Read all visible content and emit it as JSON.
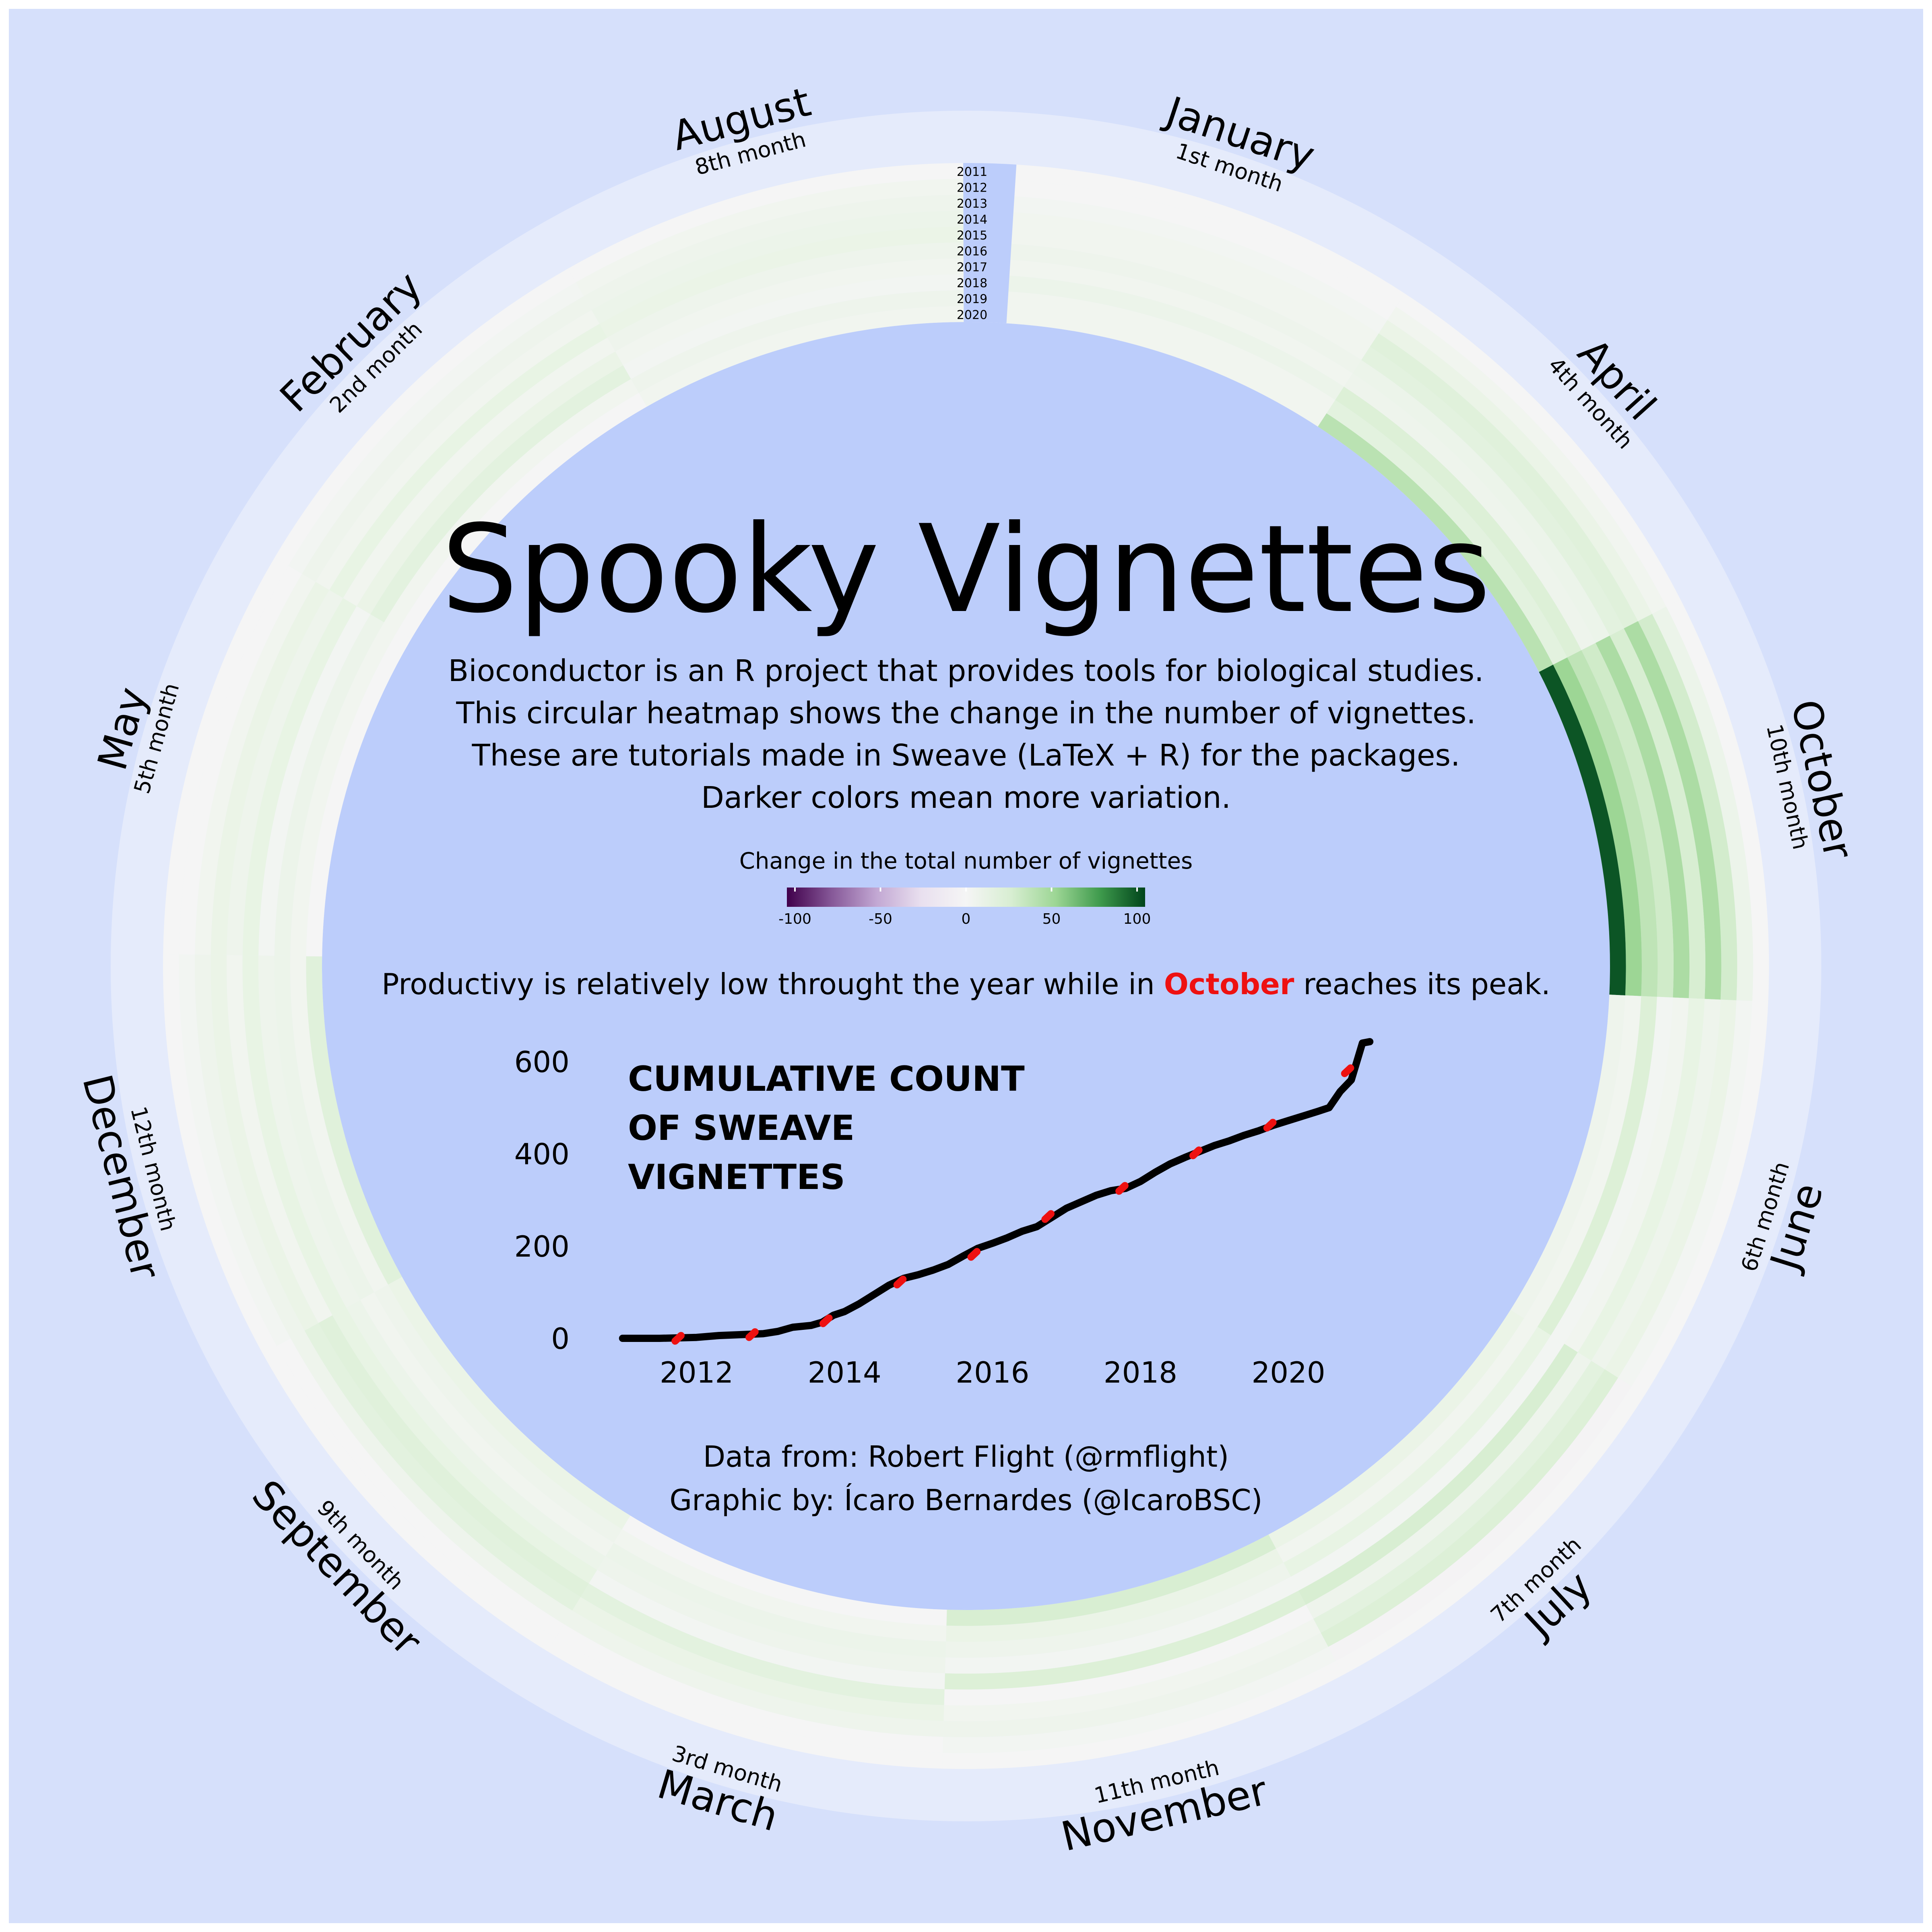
{
  "title": "Spooky Vignettes",
  "description": [
    "Bioconductor is an R project that provides tools for biological studies.",
    "This circular heatmap shows the change in the number of vignettes.",
    "These are tutorials made in Sweave (LaTeX + R) for the packages.",
    "Darker colors mean more variation."
  ],
  "legend": {
    "title": "Change in the total number of vignettes",
    "ticks": [
      "-100",
      "-50",
      "0",
      "50",
      "100"
    ],
    "range": [
      -100,
      100
    ]
  },
  "peak_note": {
    "before": "Productivy is relatively low throught the year while in ",
    "highlight": "October",
    "after": " reaches its peak."
  },
  "credits": {
    "data": "Data from: Robert Flight (@rmflight)",
    "graphic": "Graphic by: Ícaro Bernardes (@IcaroBSC)"
  },
  "colors": {
    "background": "#d6e0fb",
    "center": "#bccdfb",
    "highlight": "#ee1111",
    "line": "#000000",
    "year_label_bg": "#bccdfb"
  },
  "chart_data": [
    {
      "type": "heatmap",
      "layout": "circular",
      "months_order_clockwise": [
        "January",
        "April",
        "October",
        "June",
        "July",
        "November",
        "March",
        "September",
        "December",
        "May",
        "February",
        "August"
      ],
      "month_sublabels": {
        "January": "1st month",
        "February": "2nd month",
        "March": "3rd month",
        "April": "4th month",
        "May": "5th month",
        "June": "6th month",
        "July": "7th month",
        "August": "8th month",
        "September": "9th month",
        "October": "10th month",
        "November": "11th month",
        "December": "12th month"
      },
      "years": [
        "2011",
        "2012",
        "2013",
        "2014",
        "2015",
        "2016",
        "2017",
        "2018",
        "2019",
        "2020"
      ],
      "value_range": [
        -100,
        100
      ],
      "values": {
        "January": [
          0,
          0,
          3,
          5,
          5,
          8,
          5,
          10,
          5,
          5
        ],
        "April": [
          0,
          5,
          12,
          20,
          18,
          10,
          8,
          22,
          18,
          40
        ],
        "October": [
          0,
          10,
          28,
          45,
          25,
          45,
          30,
          38,
          50,
          95
        ],
        "June": [
          0,
          3,
          12,
          8,
          15,
          5,
          3,
          22,
          5,
          8
        ],
        "July": [
          0,
          -3,
          22,
          18,
          8,
          25,
          3,
          15,
          5,
          12
        ],
        "November": [
          0,
          3,
          8,
          5,
          0,
          22,
          3,
          8,
          12,
          25
        ],
        "March": [
          0,
          0,
          8,
          12,
          18,
          3,
          8,
          10,
          5,
          0
        ],
        "September": [
          0,
          0,
          8,
          18,
          20,
          15,
          10,
          5,
          8,
          12
        ],
        "December": [
          0,
          3,
          8,
          12,
          5,
          15,
          8,
          10,
          5,
          20
        ],
        "May": [
          0,
          0,
          5,
          12,
          8,
          15,
          3,
          10,
          5,
          0
        ],
        "February": [
          0,
          3,
          8,
          5,
          15,
          5,
          12,
          18,
          5,
          0
        ],
        "August": [
          0,
          5,
          8,
          10,
          12,
          8,
          5,
          3,
          8,
          5
        ]
      }
    },
    {
      "type": "line",
      "title": "CUMULATIVE COUNT OF SWEAVE VIGNETTES",
      "xlabel": "",
      "ylabel": "",
      "xlim": [
        2010.8,
        2021.3
      ],
      "ylim": [
        0,
        650
      ],
      "x_ticks": [
        2012,
        2014,
        2016,
        2018,
        2020
      ],
      "y_ticks": [
        0,
        200,
        400,
        600
      ],
      "series": [
        {
          "x": [
            2011.0,
            2011.5,
            2012.0,
            2012.3,
            2012.6,
            2012.9,
            2013.1,
            2013.3,
            2013.55,
            2013.7,
            2013.85,
            2014.0,
            2014.2,
            2014.4,
            2014.6,
            2014.8,
            2015.0,
            2015.2,
            2015.4,
            2015.6,
            2015.8,
            2016.0,
            2016.2,
            2016.4,
            2016.6,
            2016.8,
            2017.0,
            2017.2,
            2017.4,
            2017.6,
            2017.8,
            2018.0,
            2018.2,
            2018.4,
            2018.6,
            2018.8,
            2019.0,
            2019.2,
            2019.4,
            2019.6,
            2019.8,
            2020.0,
            2020.2,
            2020.4,
            2020.55,
            2020.7,
            2020.85,
            2021.0,
            2021.1
          ],
          "y": [
            0,
            0,
            2,
            6,
            8,
            10,
            15,
            24,
            28,
            35,
            50,
            58,
            75,
            95,
            115,
            130,
            138,
            148,
            160,
            178,
            195,
            206,
            218,
            232,
            242,
            262,
            282,
            296,
            310,
            320,
            325,
            340,
            360,
            378,
            392,
            405,
            418,
            428,
            440,
            450,
            462,
            472,
            482,
            492,
            500,
            535,
            560,
            640,
            643
          ]
        }
      ],
      "peak_points": [
        {
          "x": 2011.75,
          "y": 0
        },
        {
          "x": 2012.75,
          "y": 8
        },
        {
          "x": 2013.75,
          "y": 38
        },
        {
          "x": 2014.75,
          "y": 122
        },
        {
          "x": 2015.75,
          "y": 182
        },
        {
          "x": 2016.75,
          "y": 264
        },
        {
          "x": 2017.75,
          "y": 325
        },
        {
          "x": 2018.75,
          "y": 402
        },
        {
          "x": 2019.75,
          "y": 462
        },
        {
          "x": 2020.8,
          "y": 580
        }
      ]
    }
  ]
}
